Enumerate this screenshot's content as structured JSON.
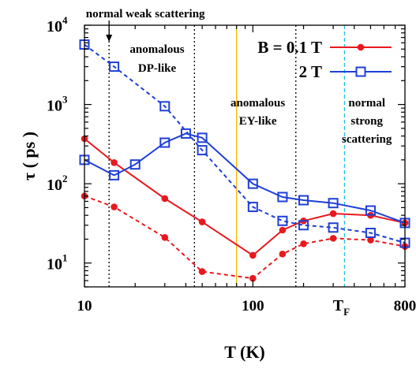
{
  "chart_data": {
    "type": "line",
    "xlabel": "T (K)",
    "ylabel": "τ ( ps )",
    "xscale": "log",
    "yscale": "log",
    "xlim": [
      10,
      800
    ],
    "ylim": [
      5,
      10000
    ],
    "x_ticks": [
      {
        "value": 10,
        "label": "10"
      },
      {
        "value": 100,
        "label": "100"
      },
      {
        "value": 800,
        "label": "800"
      }
    ],
    "y_ticks": [
      {
        "value": 10,
        "base": "10",
        "exp": "1"
      },
      {
        "value": 100,
        "base": "10",
        "exp": "2"
      },
      {
        "value": 1000,
        "base": "10",
        "exp": "3"
      },
      {
        "value": 10000,
        "base": "10",
        "exp": "4"
      }
    ],
    "vertical_lines": [
      {
        "x": 14,
        "style": "dotted",
        "color": "#000000"
      },
      {
        "x": 45,
        "style": "dotted",
        "color": "#000000"
      },
      {
        "x": 80,
        "style": "solid",
        "color": "#f5b700"
      },
      {
        "x": 180,
        "style": "dotted",
        "color": "#000000"
      },
      {
        "x": 350,
        "style": "dashed",
        "color": "#22c4e0"
      }
    ],
    "annotations": [
      {
        "text": "normal weak scattering",
        "x": 23,
        "y": 19000
      },
      {
        "text": "anomalous",
        "x": 27,
        "y": 4500
      },
      {
        "text": "DP-like",
        "x": 27,
        "y": 2600
      },
      {
        "text": "anomalous",
        "x": 107,
        "y": 950
      },
      {
        "text": "EY-like",
        "x": 107,
        "y": 560
      },
      {
        "text": "normal",
        "x": 475,
        "y": 950
      },
      {
        "text": "strong",
        "x": 475,
        "y": 560
      },
      {
        "text": "scattering",
        "x": 475,
        "y": 330
      }
    ],
    "tf_label": {
      "main": "T",
      "sub": "F",
      "x": 350
    },
    "legend_placement": "top-right",
    "series": [
      {
        "name": "B = 0.1 T",
        "color": "#e8191e",
        "marker": "filled-circle",
        "line": "solid",
        "x": [
          10,
          15,
          30,
          50,
          100,
          150,
          200,
          300,
          500,
          800
        ],
        "values": [
          370,
          185,
          65,
          33,
          12.5,
          26,
          34,
          42,
          40,
          32
        ]
      },
      {
        "name": "",
        "color": "#e8191e",
        "marker": "filled-circle",
        "line": "dashed",
        "x": [
          10,
          15,
          30,
          50,
          100,
          150,
          200,
          300,
          500,
          800
        ],
        "values": [
          70,
          51,
          21,
          7.8,
          6.4,
          13,
          17.5,
          20.5,
          19.5,
          16.2
        ]
      },
      {
        "name": "2 T",
        "color": "#1f3fd6",
        "marker": "open-square",
        "line": "solid",
        "x": [
          10,
          15,
          20,
          30,
          40,
          50,
          100,
          150,
          200,
          300,
          500,
          800
        ],
        "values": [
          200,
          128,
          175,
          330,
          430,
          380,
          100,
          68,
          62,
          57,
          46,
          32
        ]
      },
      {
        "name": "",
        "color": "#1f3fd6",
        "marker": "open-square",
        "line": "dashed",
        "x": [
          10,
          15,
          30,
          50,
          100,
          150,
          200,
          300,
          500,
          800
        ],
        "values": [
          5700,
          3000,
          950,
          265,
          51,
          34,
          30,
          28,
          24,
          18
        ]
      }
    ]
  }
}
